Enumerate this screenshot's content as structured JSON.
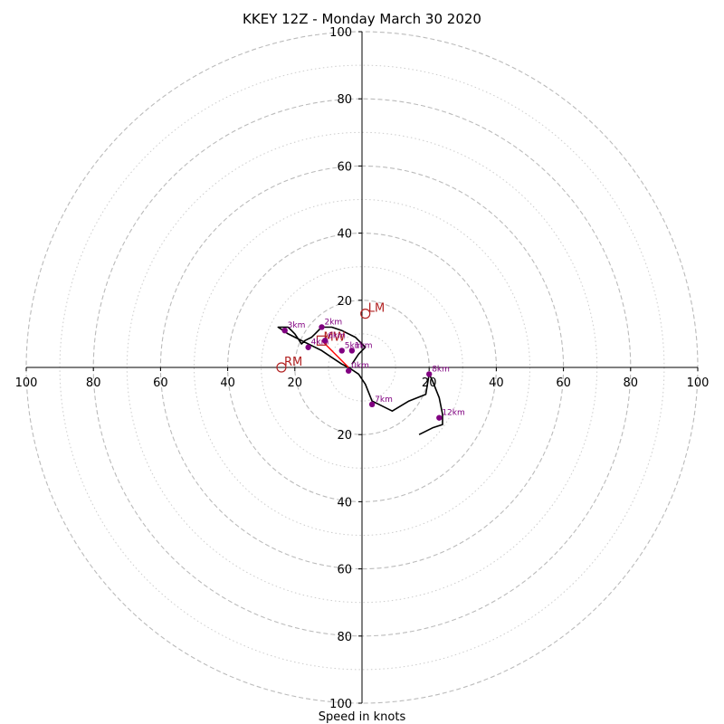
{
  "chart_data": {
    "type": "line",
    "title": "KKEY 12Z - Monday March 30 2020",
    "xlabel": "Speed in knots",
    "range": 100,
    "rings_major": [
      20,
      40,
      60,
      80,
      100
    ],
    "rings_minor": [
      10,
      30,
      50,
      70,
      90
    ],
    "tick_values": [
      20,
      40,
      60,
      80,
      100
    ],
    "x_tick_labels": [
      "100",
      "80",
      "60",
      "40",
      "20",
      "20",
      "40",
      "60",
      "80",
      "100"
    ],
    "y_tick_labels": [
      "100",
      "80",
      "60",
      "40",
      "20",
      "20",
      "40",
      "60",
      "80",
      "100"
    ],
    "colors": {
      "trace": "#000000",
      "height_marker": "#800080",
      "storm_motion": "#b22222",
      "shear_vector": "#ff0000",
      "ring_grid": "#bbbbbb",
      "axis": "#000000"
    },
    "series": [
      {
        "points": [
          [
            -3,
            1
          ],
          [
            -1,
            4
          ],
          [
            1,
            6
          ],
          [
            -2,
            9
          ],
          [
            -6,
            11
          ],
          [
            -9,
            12
          ],
          [
            -12,
            12
          ],
          [
            -14,
            10
          ],
          [
            -15,
            9
          ],
          [
            -17,
            8
          ],
          [
            -18,
            7
          ],
          [
            -20,
            10
          ],
          [
            -22,
            12
          ],
          [
            -25,
            12
          ],
          [
            -22,
            10
          ],
          [
            -20,
            9
          ],
          [
            -18,
            8
          ],
          [
            -16,
            7
          ],
          [
            -12,
            5
          ],
          [
            -9,
            3
          ],
          [
            -6,
            1
          ],
          [
            -4,
            0
          ],
          [
            -1,
            -2
          ],
          [
            1,
            -5
          ],
          [
            3,
            -10
          ],
          [
            5,
            -11
          ],
          [
            9,
            -13
          ],
          [
            14,
            -10
          ],
          [
            19,
            -8
          ],
          [
            20,
            -2
          ],
          [
            21,
            -4
          ],
          [
            23,
            -9
          ],
          [
            24,
            -14
          ],
          [
            24,
            -17
          ],
          [
            21,
            -18
          ],
          [
            17,
            -20
          ]
        ]
      }
    ],
    "height_markers": [
      {
        "label": "0km",
        "x": -4,
        "y": -1
      },
      {
        "label": "1km",
        "x": -3,
        "y": 5
      },
      {
        "label": "2km",
        "x": -12,
        "y": 12
      },
      {
        "label": "3km",
        "x": -23,
        "y": 11
      },
      {
        "label": "4km",
        "x": -16,
        "y": 6
      },
      {
        "label": "5km",
        "x": -6,
        "y": 5
      },
      {
        "label": "6km",
        "x": -11,
        "y": 8
      },
      {
        "label": "7km",
        "x": 3,
        "y": -11
      },
      {
        "label": "8km",
        "x": 20,
        "y": -2
      },
      {
        "label": "12km",
        "x": 23,
        "y": -15
      }
    ],
    "storm_motion": [
      {
        "label": "LM",
        "x": 1,
        "y": 16
      },
      {
        "label": "RM",
        "x": -24,
        "y": 0
      },
      {
        "label": "MW",
        "x": -12,
        "y": 8
      }
    ],
    "shear_vector": {
      "from": [
        -4,
        0
      ],
      "to": [
        -12,
        8
      ]
    }
  }
}
